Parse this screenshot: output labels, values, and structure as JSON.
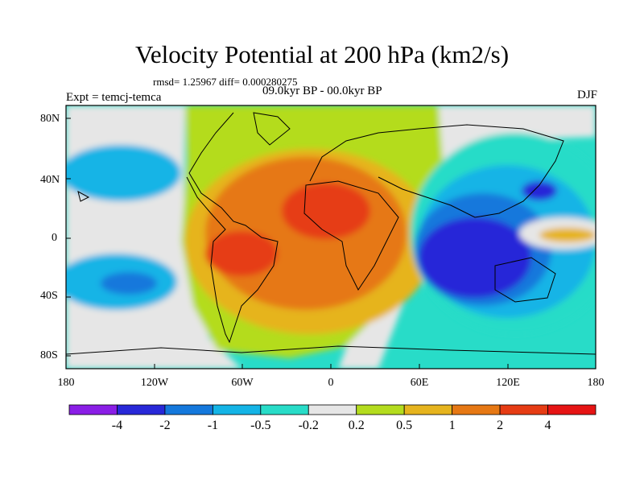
{
  "title": "Velocity Potential at 200 hPa (km2/s)",
  "stats": "rmsd= 1.25967 diff= 0.000280275",
  "expt": "Expt = temcj-temca",
  "period": "09.0kyr BP - 00.0kyr BP",
  "season": "DJF",
  "y_axis_labels": [
    "80N",
    "40N",
    "0",
    "40S",
    "80S"
  ],
  "x_axis_labels": [
    "180",
    "120W",
    "60W",
    "0",
    "60E",
    "120E",
    "180"
  ],
  "colorbar": {
    "labels": [
      "-4",
      "-2",
      "-1",
      "-0.5",
      "-0.2",
      "0.2",
      "0.5",
      "1",
      "2",
      "4"
    ],
    "colors": [
      "#8a1ee6",
      "#2828d8",
      "#1478dc",
      "#14b4e6",
      "#28dcc8",
      "#e6e6e6",
      "#b4dc1e",
      "#e6b41e",
      "#e67814",
      "#e63c14",
      "#e61414"
    ]
  }
}
